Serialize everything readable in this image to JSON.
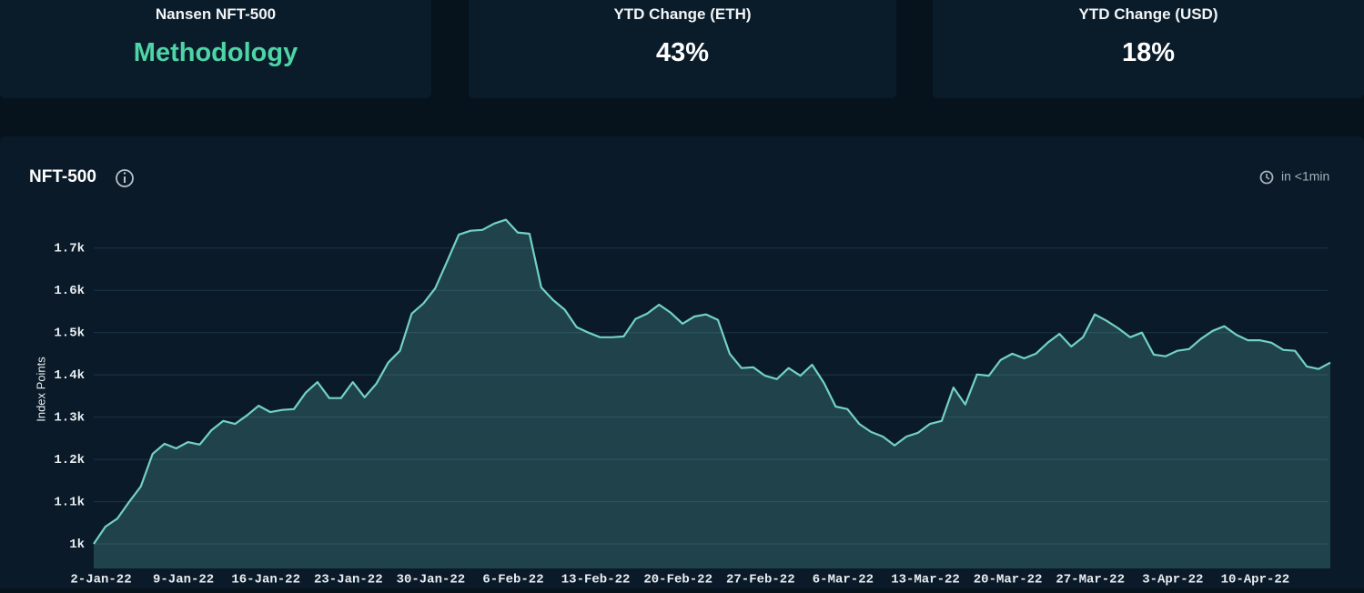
{
  "cards": [
    {
      "label": "Nansen NFT-500",
      "value": "Methodology"
    },
    {
      "label": "YTD Change (ETH)",
      "value": "43%"
    },
    {
      "label": "YTD Change (USD)",
      "value": "18%"
    }
  ],
  "chart_data": {
    "type": "area",
    "title": "NFT-500",
    "refresh": "in <1min",
    "y_label": "Index Points",
    "color": "#72d2c4",
    "grid": true,
    "ylim": [
      942,
      1792
    ],
    "yticks": [
      {
        "value": 1000,
        "label": "1k"
      },
      {
        "value": 1100,
        "label": "1.1k"
      },
      {
        "value": 1200,
        "label": "1.2k"
      },
      {
        "value": 1300,
        "label": "1.3k"
      },
      {
        "value": 1400,
        "label": "1.4k"
      },
      {
        "value": 1500,
        "label": "1.5k"
      },
      {
        "value": 1600,
        "label": "1.6k"
      },
      {
        "value": 1700,
        "label": "1.7k"
      }
    ],
    "categories": [
      "2-Jan-22",
      null,
      null,
      null,
      null,
      null,
      null,
      "9-Jan-22",
      null,
      null,
      null,
      null,
      null,
      null,
      "16-Jan-22",
      null,
      null,
      null,
      null,
      null,
      null,
      "23-Jan-22",
      null,
      null,
      null,
      null,
      null,
      null,
      "30-Jan-22",
      null,
      null,
      null,
      null,
      null,
      null,
      "6-Feb-22",
      null,
      null,
      null,
      null,
      null,
      null,
      "13-Feb-22",
      null,
      null,
      null,
      null,
      null,
      null,
      "20-Feb-22",
      null,
      null,
      null,
      null,
      null,
      null,
      "27-Feb-22",
      null,
      null,
      null,
      null,
      null,
      null,
      "6-Mar-22",
      null,
      null,
      null,
      null,
      null,
      null,
      "13-Mar-22",
      null,
      null,
      null,
      null,
      null,
      null,
      "20-Mar-22",
      null,
      null,
      null,
      null,
      null,
      null,
      "27-Mar-22",
      null,
      null,
      null,
      null,
      null,
      null,
      "3-Apr-22",
      null,
      null,
      null,
      null,
      null,
      null,
      "10-Apr-22",
      null,
      null,
      null,
      null,
      null,
      null,
      null
    ],
    "values": [
      1000,
      1041,
      1060,
      1099,
      1136,
      1213,
      1237,
      1226,
      1241,
      1235,
      1269,
      1291,
      1284,
      1304,
      1327,
      1312,
      1317,
      1319,
      1358,
      1383,
      1345,
      1345,
      1383,
      1347,
      1379,
      1429,
      1457,
      1545,
      1569,
      1605,
      1668,
      1732,
      1741,
      1743,
      1758,
      1767,
      1737,
      1734,
      1607,
      1577,
      1554,
      1513,
      1500,
      1489,
      1489,
      1491,
      1532,
      1545,
      1566,
      1547,
      1521,
      1538,
      1543,
      1530,
      1450,
      1416,
      1418,
      1398,
      1390,
      1416,
      1398,
      1424,
      1381,
      1325,
      1319,
      1284,
      1265,
      1254,
      1233,
      1254,
      1263,
      1284,
      1291,
      1370,
      1330,
      1401,
      1398,
      1435,
      1450,
      1439,
      1450,
      1476,
      1497,
      1467,
      1489,
      1543,
      1528,
      1510,
      1489,
      1500,
      1448,
      1444,
      1457,
      1461,
      1485,
      1504,
      1515,
      1495,
      1482,
      1482,
      1476,
      1459,
      1457,
      1420,
      1414,
      1429
    ]
  }
}
